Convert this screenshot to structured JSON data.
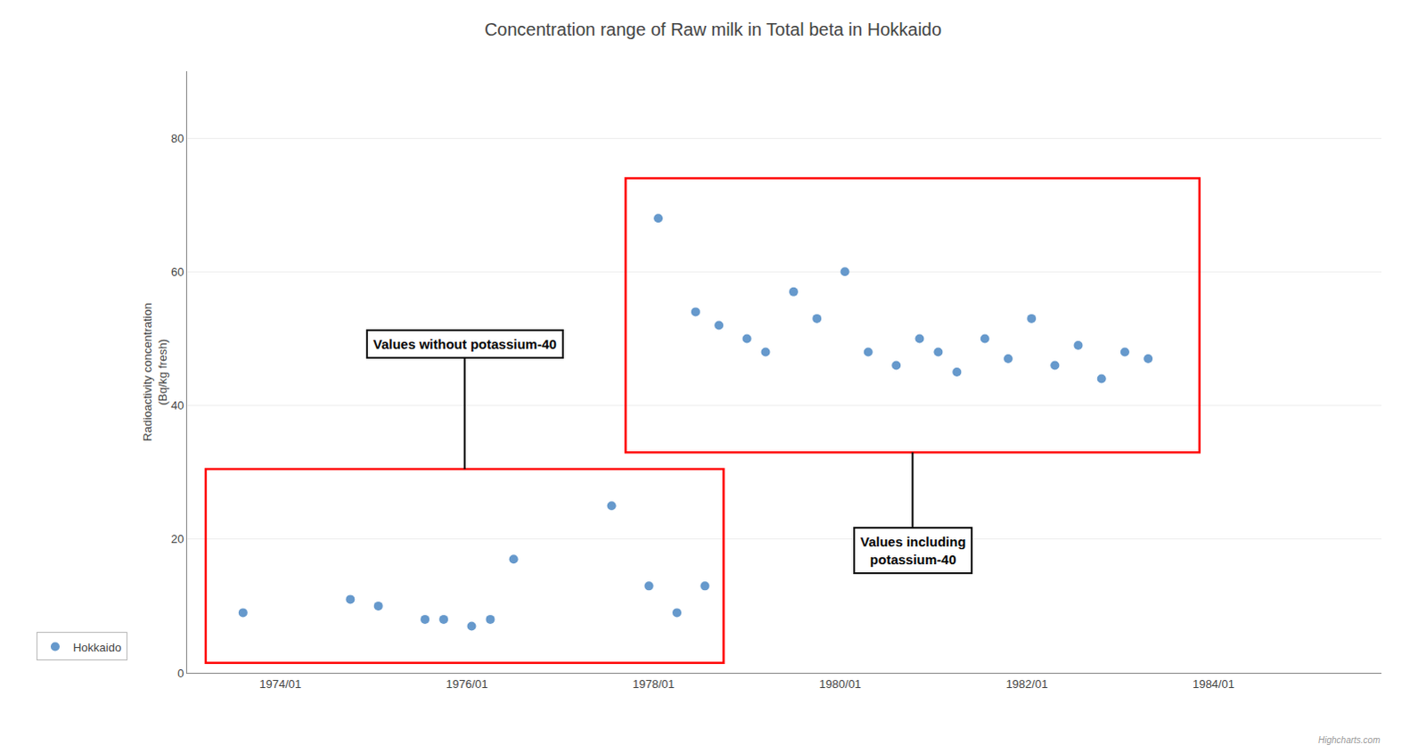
{
  "chart_data": {
    "type": "scatter",
    "title": "Concentration range of Raw milk in Total beta in Hokkaido",
    "ylabel": "Radioactivity concentration\n(Bq/kg fresh)",
    "series": [
      {
        "name": "Hokkaido",
        "color": "#6699cc",
        "marker": "circle",
        "x": [
          1973.6,
          1974.75,
          1975.05,
          1975.55,
          1975.75,
          1976.05,
          1976.25,
          1976.5,
          1977.55,
          1977.95,
          1978.25,
          1978.55,
          1978.05,
          1978.45,
          1978.7,
          1979.0,
          1979.2,
          1979.5,
          1979.75,
          1980.05,
          1980.3,
          1980.6,
          1980.85,
          1981.05,
          1981.25,
          1981.55,
          1981.8,
          1982.05,
          1982.3,
          1982.55,
          1982.8,
          1983.05,
          1983.3
        ],
        "values": [
          9,
          11,
          10,
          8,
          8,
          7,
          8,
          17,
          25,
          13,
          9,
          13,
          68,
          54,
          52,
          50,
          48,
          57,
          53,
          60,
          48,
          46,
          50,
          48,
          45,
          50,
          47,
          53,
          46,
          49,
          44,
          48,
          47
        ]
      }
    ],
    "xlim": [
      1973.0,
      1985.8
    ],
    "xticks": [
      {
        "value": 1974.0,
        "label": "1974/01"
      },
      {
        "value": 1976.0,
        "label": "1976/01"
      },
      {
        "value": 1978.0,
        "label": "1978/01"
      },
      {
        "value": 1980.0,
        "label": "1980/01"
      },
      {
        "value": 1982.0,
        "label": "1982/01"
      },
      {
        "value": 1984.0,
        "label": "1984/01"
      }
    ],
    "ylim": [
      0,
      90
    ],
    "yticks": [
      0,
      20,
      40,
      60,
      80
    ],
    "grid": "y",
    "legend": "left",
    "boxes": [
      {
        "x0": 1973.2,
        "y0": 1.5,
        "width": 5.55,
        "height": 29,
        "color": "red"
      },
      {
        "x0": 1977.7,
        "y0": 33,
        "width": 6.15,
        "height": 41,
        "color": "red"
      }
    ],
    "annotations": [
      {
        "text": "Values without potassium-40"
      },
      {
        "text": "Values including\npotassium-40"
      }
    ],
    "credits": "Highcharts.com"
  }
}
